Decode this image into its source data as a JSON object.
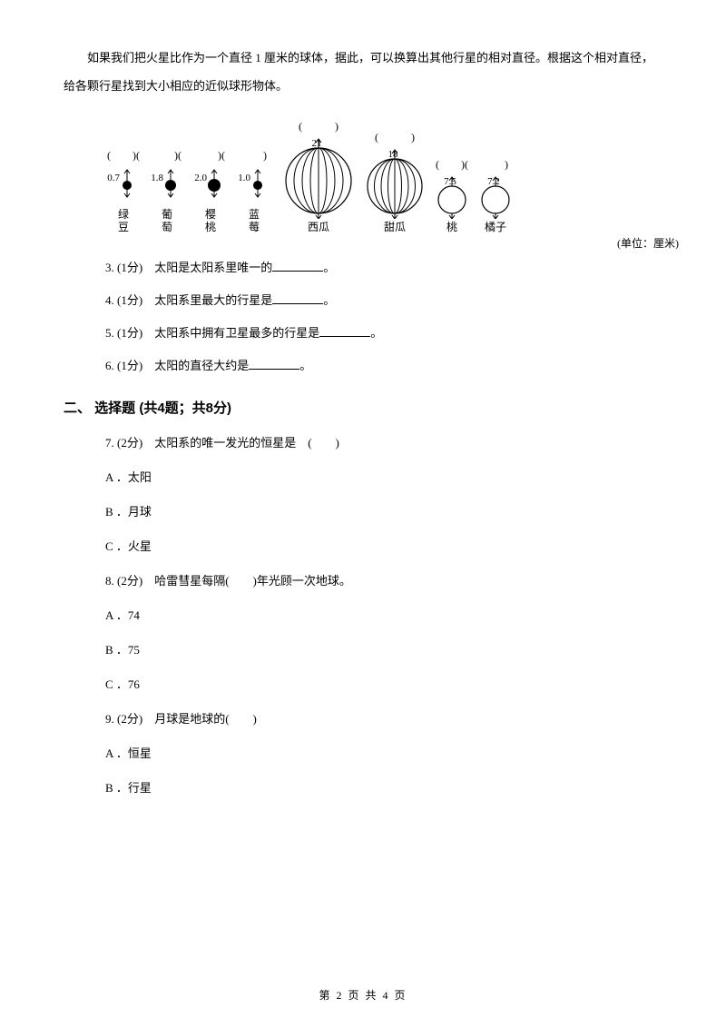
{
  "intro": "如果我们把火星比作为一个直径 1 厘米的球体，据此，可以换算出其他行星的相对直径。根据这个相对直径，给各颗行星找到大小相应的近似球形物体。",
  "diagram": {
    "items": [
      {
        "value": "0.7",
        "label": "绿\n豆",
        "paren": "(　　)(",
        "radius": 5,
        "ellipse": false
      },
      {
        "value": "1.8",
        "label": "葡\n萄",
        "paren": "　　)(",
        "radius": 6,
        "ellipse": false
      },
      {
        "value": "2.0",
        "label": "樱\n桃",
        "paren": "　　)(",
        "radius": 7,
        "ellipse": false
      },
      {
        "value": "1.0",
        "label": "蓝\n莓",
        "paren": "　　)",
        "radius": 5,
        "ellipse": false
      },
      {
        "value": "21",
        "label": "西瓜",
        "paren": "(　　　)",
        "radius": 36,
        "ellipse": true
      },
      {
        "value": "18",
        "label": "甜瓜",
        "paren": "(　　　)",
        "radius": 30,
        "ellipse": true
      },
      {
        "value": "7.5",
        "label": "桃",
        "paren": "(　　)(",
        "radius": 15,
        "ellipse": false
      },
      {
        "value": "7.2",
        "label": "橘子",
        "paren": "　　)",
        "radius": 15,
        "ellipse": false
      }
    ],
    "unit": "(单位：厘米)"
  },
  "questions": [
    {
      "num": "3.",
      "pts": "(1分)",
      "text_before": "太阳是太阳系里唯一的",
      "text_after": "。"
    },
    {
      "num": "4.",
      "pts": "(1分)",
      "text_before": "太阳系里最大的行星是",
      "text_after": "。"
    },
    {
      "num": "5.",
      "pts": "(1分)",
      "text_before": "太阳系中拥有卫星最多的行星是",
      "text_after": "。"
    },
    {
      "num": "6.",
      "pts": "(1分)",
      "text_before": "太阳的直径大约是",
      "text_after": "。"
    }
  ],
  "section2_header": "二、 选择题 (共4题；共8分)",
  "mcq": [
    {
      "num": "7.",
      "pts": "(2分)",
      "stem": "太阳系的唯一发光的恒星是　(　　)",
      "opts": [
        {
          "k": "A ．",
          "v": "太阳"
        },
        {
          "k": "B ．",
          "v": "月球"
        },
        {
          "k": "C ．",
          "v": "火星"
        }
      ]
    },
    {
      "num": "8.",
      "pts": "(2分)",
      "stem": "哈雷彗星每隔(　　)年光顾一次地球。",
      "opts": [
        {
          "k": "A ．",
          "v": "74"
        },
        {
          "k": "B ．",
          "v": "75"
        },
        {
          "k": "C ．",
          "v": "76"
        }
      ]
    },
    {
      "num": "9.",
      "pts": "(2分)",
      "stem": "月球是地球的(　　)",
      "opts": [
        {
          "k": "A ．",
          "v": "恒星"
        },
        {
          "k": "B ．",
          "v": "行星"
        }
      ]
    }
  ],
  "footer": "第 2 页 共 4 页"
}
